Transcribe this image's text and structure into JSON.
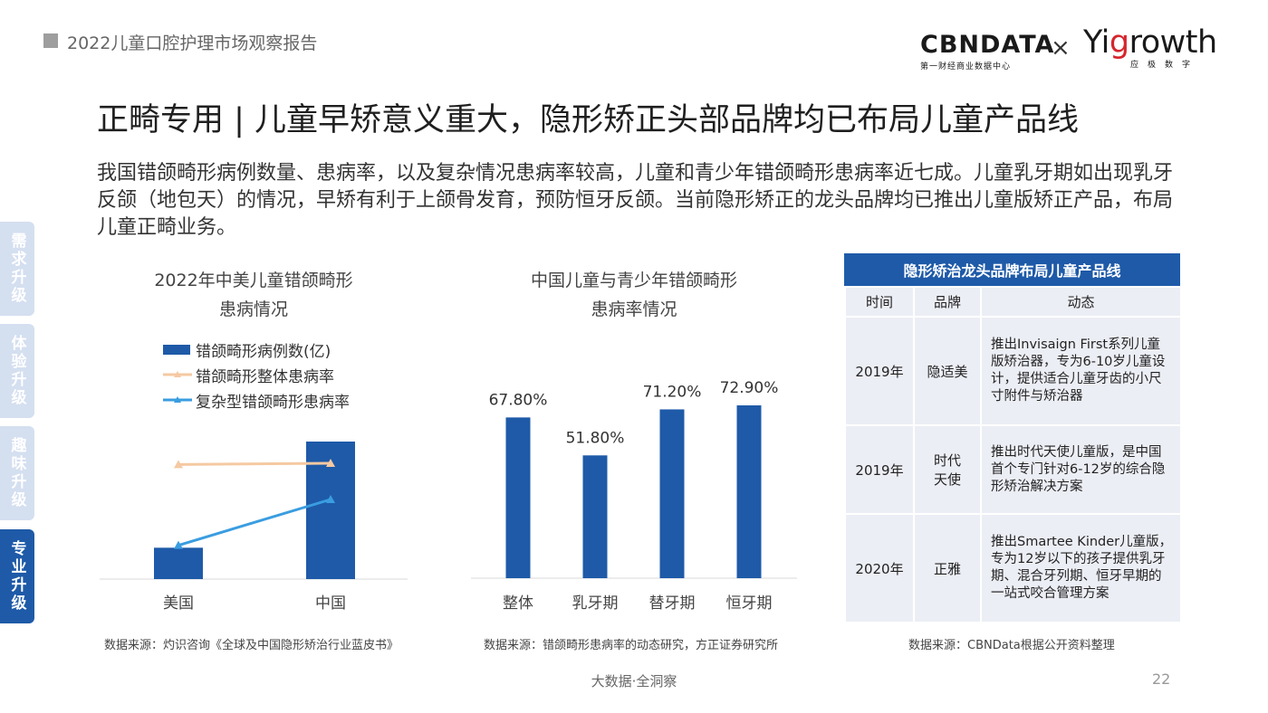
{
  "header": {
    "report_title": "2022儿童口腔护理市场观察报告",
    "logo_cbn": "CBNDATA",
    "logo_cbn_sub": "第一财经商业数据中心",
    "logo_x": "×",
    "logo_yi_part1": "Yi",
    "logo_yi_accent": "g",
    "logo_yi_part2": "rowth",
    "logo_yi_sub": "应极数字"
  },
  "page": {
    "heading": "正畸专用 | 儿童早矫意义重大，隐形矫正头部品牌均已布局儿童产品线",
    "intro": "我国错颌畸形病例数量、患病率，以及复杂情况患病率较高，儿童和青少年错颌畸形患病率近七成。儿童乳牙期如出现乳牙反颌（地包天）的情况，早矫有利于上颌骨发育，预防恒牙反颌。当前隐形矫正的龙头品牌均已推出儿童版矫正产品，布局儿童正畸业务。"
  },
  "side_tabs": [
    {
      "label": "需求升级",
      "active": false
    },
    {
      "label": "体验升级",
      "active": false
    },
    {
      "label": "趣味升级",
      "active": false
    },
    {
      "label": "专业升级",
      "active": true
    }
  ],
  "colors": {
    "accent": "#1e5aa8",
    "line_orange": "#f5c9a2",
    "line_blue": "#3a9de0",
    "table_bg": "#eceef5"
  },
  "chart_data": [
    {
      "type": "bar",
      "title": "2022年中美儿童错颌畸形患病情况",
      "title_line1": "2022年中美儿童错颌畸形",
      "title_line2": "患病情况",
      "categories": [
        "美国",
        "中国"
      ],
      "series": [
        {
          "name": "错颌畸形病例数(亿)",
          "type": "bar",
          "values": [
            0.26,
            1.14
          ]
        },
        {
          "name": "错颌畸形整体患病率",
          "type": "line",
          "values": [
            0.95,
            0.96
          ]
        },
        {
          "name": "复杂型错颌畸形患病率",
          "type": "line",
          "values": [
            0.28,
            0.66
          ]
        }
      ],
      "ylim": [
        0,
        1.2
      ],
      "grid": false,
      "legend": "top-left",
      "source": "数据来源：灼识咨询《全球及中国隐形矫治行业蓝皮书》"
    },
    {
      "type": "bar",
      "title": "中国儿童与青少年错颌畸形患病率情况",
      "title_line1": "中国儿童与青少年错颌畸形",
      "title_line2": "患病率情况",
      "categories": [
        "整体",
        "乳牙期",
        "替牙期",
        "恒牙期"
      ],
      "values": [
        67.8,
        51.8,
        71.2,
        72.9
      ],
      "labels": [
        "67.80%",
        "51.80%",
        "71.20%",
        "72.90%"
      ],
      "ylim": [
        0,
        100
      ],
      "grid": false,
      "source": "数据来源：错颌畸形患病率的动态研究，方正证券研究所"
    }
  ],
  "table": {
    "title": "隐形矫治龙头品牌布局儿童产品线",
    "headers": [
      "时间",
      "品牌",
      "动态"
    ],
    "rows": [
      {
        "year": "2019年",
        "brand": "隐适美",
        "desc": "推出Invisaign First系列儿童版矫治器，专为6-10岁儿童设计，提供适合儿童牙齿的小尺寸附件与矫治器"
      },
      {
        "year": "2019年",
        "brand": "时代天使",
        "desc": "推出时代天使儿童版，是中国首个专门针对6-12岁的综合隐形矫治解决方案"
      },
      {
        "year": "2020年",
        "brand": "正雅",
        "desc": "推出Smartee Kinder儿童版，专为12岁以下的孩子提供乳牙期、混合牙列期、恒牙早期的一站式咬合管理方案"
      }
    ],
    "source": "数据来源：CBNData根据公开资料整理"
  },
  "footer": {
    "text": "大数据·全洞察",
    "page_number": "22"
  }
}
